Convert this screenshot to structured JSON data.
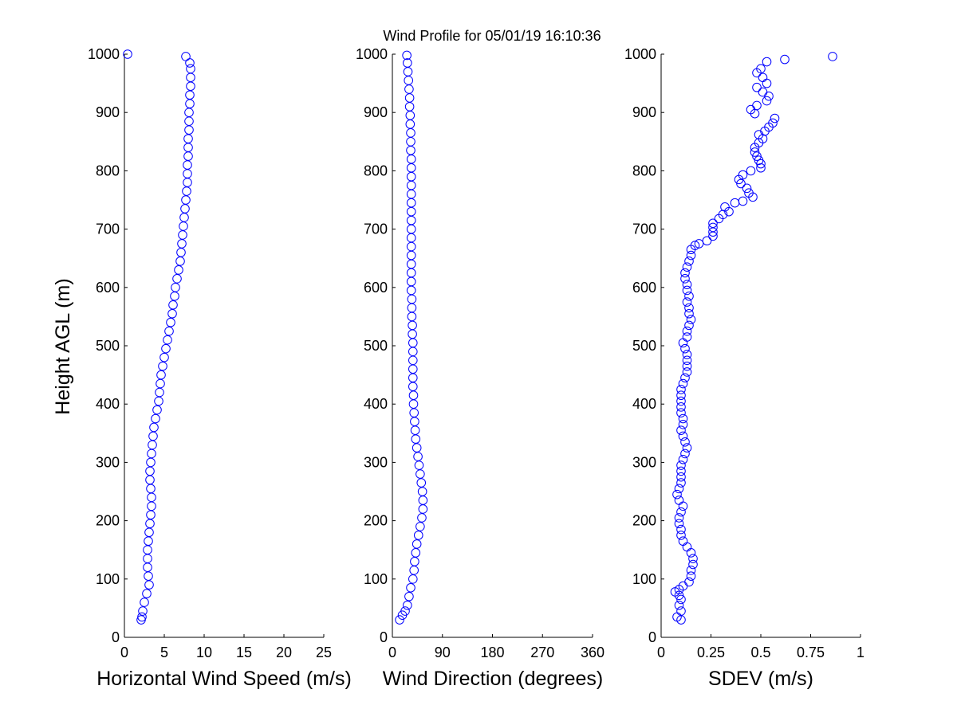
{
  "title": "Wind Profile for  05/01/19 16:10:36",
  "marker_color": "#0000ff",
  "axis_color": "#000000",
  "chart_data": [
    {
      "type": "scatter",
      "panel": "speed",
      "xlabel": "Horizontal Wind Speed (m/s)",
      "ylabel": "Height AGL (m)",
      "xlim": [
        0,
        25
      ],
      "ylim": [
        0,
        1000
      ],
      "xticks": [
        "0",
        "5",
        "10",
        "15",
        "20",
        "25"
      ],
      "yticks": [
        "0",
        "100",
        "200",
        "300",
        "400",
        "500",
        "600",
        "700",
        "800",
        "900",
        "1000"
      ],
      "grid": false,
      "points": [
        {
          "x": 0.4,
          "y": 1000
        },
        {
          "x": 7.7,
          "y": 996
        },
        {
          "x": 8.2,
          "y": 985
        },
        {
          "x": 8.3,
          "y": 975
        },
        {
          "x": 8.3,
          "y": 960
        },
        {
          "x": 8.3,
          "y": 945
        },
        {
          "x": 8.2,
          "y": 930
        },
        {
          "x": 8.2,
          "y": 915
        },
        {
          "x": 8.1,
          "y": 900
        },
        {
          "x": 8.1,
          "y": 885
        },
        {
          "x": 8.1,
          "y": 870
        },
        {
          "x": 8.0,
          "y": 855
        },
        {
          "x": 8.0,
          "y": 840
        },
        {
          "x": 8.0,
          "y": 825
        },
        {
          "x": 7.9,
          "y": 810
        },
        {
          "x": 7.9,
          "y": 795
        },
        {
          "x": 7.9,
          "y": 780
        },
        {
          "x": 7.8,
          "y": 765
        },
        {
          "x": 7.7,
          "y": 750
        },
        {
          "x": 7.6,
          "y": 735
        },
        {
          "x": 7.5,
          "y": 720
        },
        {
          "x": 7.4,
          "y": 705
        },
        {
          "x": 7.3,
          "y": 690
        },
        {
          "x": 7.2,
          "y": 675
        },
        {
          "x": 7.1,
          "y": 660
        },
        {
          "x": 7.0,
          "y": 645
        },
        {
          "x": 6.8,
          "y": 630
        },
        {
          "x": 6.6,
          "y": 615
        },
        {
          "x": 6.4,
          "y": 600
        },
        {
          "x": 6.3,
          "y": 585
        },
        {
          "x": 6.1,
          "y": 570
        },
        {
          "x": 6.0,
          "y": 555
        },
        {
          "x": 5.8,
          "y": 540
        },
        {
          "x": 5.6,
          "y": 525
        },
        {
          "x": 5.4,
          "y": 510
        },
        {
          "x": 5.2,
          "y": 495
        },
        {
          "x": 5.0,
          "y": 480
        },
        {
          "x": 4.8,
          "y": 465
        },
        {
          "x": 4.6,
          "y": 450
        },
        {
          "x": 4.5,
          "y": 435
        },
        {
          "x": 4.4,
          "y": 420
        },
        {
          "x": 4.3,
          "y": 405
        },
        {
          "x": 4.1,
          "y": 390
        },
        {
          "x": 3.9,
          "y": 375
        },
        {
          "x": 3.7,
          "y": 360
        },
        {
          "x": 3.6,
          "y": 345
        },
        {
          "x": 3.5,
          "y": 330
        },
        {
          "x": 3.4,
          "y": 315
        },
        {
          "x": 3.3,
          "y": 300
        },
        {
          "x": 3.2,
          "y": 285
        },
        {
          "x": 3.2,
          "y": 270
        },
        {
          "x": 3.3,
          "y": 255
        },
        {
          "x": 3.4,
          "y": 240
        },
        {
          "x": 3.4,
          "y": 225
        },
        {
          "x": 3.3,
          "y": 210
        },
        {
          "x": 3.2,
          "y": 195
        },
        {
          "x": 3.1,
          "y": 180
        },
        {
          "x": 3.0,
          "y": 165
        },
        {
          "x": 2.9,
          "y": 150
        },
        {
          "x": 2.9,
          "y": 135
        },
        {
          "x": 2.9,
          "y": 120
        },
        {
          "x": 3.0,
          "y": 105
        },
        {
          "x": 3.1,
          "y": 90
        },
        {
          "x": 2.8,
          "y": 75
        },
        {
          "x": 2.5,
          "y": 60
        },
        {
          "x": 2.3,
          "y": 45
        },
        {
          "x": 2.2,
          "y": 35
        },
        {
          "x": 2.1,
          "y": 30
        }
      ]
    },
    {
      "type": "scatter",
      "panel": "direction",
      "xlabel": "Wind Direction (degrees)",
      "ylabel": "",
      "xlim": [
        0,
        360
      ],
      "ylim": [
        0,
        1000
      ],
      "xticks": [
        "0",
        "90",
        "180",
        "270",
        "360"
      ],
      "yticks": [
        "0",
        "100",
        "200",
        "300",
        "400",
        "500",
        "600",
        "700",
        "800",
        "900",
        "1000"
      ],
      "grid": false,
      "points": [
        {
          "x": 26,
          "y": 998
        },
        {
          "x": 27,
          "y": 985
        },
        {
          "x": 28,
          "y": 970
        },
        {
          "x": 29,
          "y": 955
        },
        {
          "x": 30,
          "y": 940
        },
        {
          "x": 31,
          "y": 925
        },
        {
          "x": 31,
          "y": 910
        },
        {
          "x": 32,
          "y": 895
        },
        {
          "x": 32,
          "y": 880
        },
        {
          "x": 33,
          "y": 865
        },
        {
          "x": 33,
          "y": 850
        },
        {
          "x": 33,
          "y": 835
        },
        {
          "x": 34,
          "y": 820
        },
        {
          "x": 34,
          "y": 805
        },
        {
          "x": 34,
          "y": 790
        },
        {
          "x": 34,
          "y": 775
        },
        {
          "x": 34,
          "y": 760
        },
        {
          "x": 34,
          "y": 745
        },
        {
          "x": 34,
          "y": 730
        },
        {
          "x": 34,
          "y": 715
        },
        {
          "x": 34,
          "y": 700
        },
        {
          "x": 34,
          "y": 685
        },
        {
          "x": 34,
          "y": 670
        },
        {
          "x": 34,
          "y": 655
        },
        {
          "x": 34,
          "y": 640
        },
        {
          "x": 34,
          "y": 625
        },
        {
          "x": 34,
          "y": 610
        },
        {
          "x": 34,
          "y": 595
        },
        {
          "x": 35,
          "y": 580
        },
        {
          "x": 35,
          "y": 565
        },
        {
          "x": 35,
          "y": 550
        },
        {
          "x": 36,
          "y": 535
        },
        {
          "x": 36,
          "y": 520
        },
        {
          "x": 37,
          "y": 505
        },
        {
          "x": 37,
          "y": 490
        },
        {
          "x": 37,
          "y": 475
        },
        {
          "x": 37,
          "y": 460
        },
        {
          "x": 37,
          "y": 445
        },
        {
          "x": 37,
          "y": 430
        },
        {
          "x": 38,
          "y": 415
        },
        {
          "x": 38,
          "y": 400
        },
        {
          "x": 39,
          "y": 385
        },
        {
          "x": 40,
          "y": 370
        },
        {
          "x": 41,
          "y": 355
        },
        {
          "x": 42,
          "y": 340
        },
        {
          "x": 44,
          "y": 325
        },
        {
          "x": 46,
          "y": 310
        },
        {
          "x": 48,
          "y": 295
        },
        {
          "x": 50,
          "y": 280
        },
        {
          "x": 52,
          "y": 265
        },
        {
          "x": 54,
          "y": 250
        },
        {
          "x": 55,
          "y": 235
        },
        {
          "x": 55,
          "y": 220
        },
        {
          "x": 53,
          "y": 205
        },
        {
          "x": 50,
          "y": 190
        },
        {
          "x": 47,
          "y": 175
        },
        {
          "x": 44,
          "y": 160
        },
        {
          "x": 42,
          "y": 145
        },
        {
          "x": 40,
          "y": 130
        },
        {
          "x": 39,
          "y": 115
        },
        {
          "x": 37,
          "y": 100
        },
        {
          "x": 33,
          "y": 85
        },
        {
          "x": 30,
          "y": 70
        },
        {
          "x": 27,
          "y": 55
        },
        {
          "x": 23,
          "y": 45
        },
        {
          "x": 18,
          "y": 38
        },
        {
          "x": 13,
          "y": 30
        }
      ]
    },
    {
      "type": "scatter",
      "panel": "sdev",
      "xlabel": "SDEV  (m/s)",
      "ylabel": "",
      "xlim": [
        0,
        1
      ],
      "ylim": [
        0,
        1000
      ],
      "xticks": [
        "0",
        "0.25",
        "0.5",
        "0.75",
        "1"
      ],
      "yticks": [
        "0",
        "100",
        "200",
        "300",
        "400",
        "500",
        "600",
        "700",
        "800",
        "900",
        "1000"
      ],
      "grid": false,
      "points": [
        {
          "x": 0.86,
          "y": 996
        },
        {
          "x": 0.62,
          "y": 991
        },
        {
          "x": 0.53,
          "y": 987
        },
        {
          "x": 0.5,
          "y": 975
        },
        {
          "x": 0.48,
          "y": 968
        },
        {
          "x": 0.51,
          "y": 960
        },
        {
          "x": 0.53,
          "y": 950
        },
        {
          "x": 0.48,
          "y": 943
        },
        {
          "x": 0.51,
          "y": 935
        },
        {
          "x": 0.54,
          "y": 928
        },
        {
          "x": 0.53,
          "y": 920
        },
        {
          "x": 0.48,
          "y": 912
        },
        {
          "x": 0.45,
          "y": 905
        },
        {
          "x": 0.47,
          "y": 898
        },
        {
          "x": 0.57,
          "y": 890
        },
        {
          "x": 0.56,
          "y": 882
        },
        {
          "x": 0.54,
          "y": 875
        },
        {
          "x": 0.52,
          "y": 868
        },
        {
          "x": 0.49,
          "y": 862
        },
        {
          "x": 0.51,
          "y": 855
        },
        {
          "x": 0.49,
          "y": 848
        },
        {
          "x": 0.47,
          "y": 840
        },
        {
          "x": 0.47,
          "y": 832
        },
        {
          "x": 0.48,
          "y": 825
        },
        {
          "x": 0.49,
          "y": 818
        },
        {
          "x": 0.5,
          "y": 812
        },
        {
          "x": 0.5,
          "y": 805
        },
        {
          "x": 0.45,
          "y": 800
        },
        {
          "x": 0.41,
          "y": 793
        },
        {
          "x": 0.39,
          "y": 785
        },
        {
          "x": 0.4,
          "y": 778
        },
        {
          "x": 0.43,
          "y": 770
        },
        {
          "x": 0.44,
          "y": 762
        },
        {
          "x": 0.46,
          "y": 755
        },
        {
          "x": 0.41,
          "y": 748
        },
        {
          "x": 0.37,
          "y": 745
        },
        {
          "x": 0.32,
          "y": 738
        },
        {
          "x": 0.34,
          "y": 730
        },
        {
          "x": 0.31,
          "y": 725
        },
        {
          "x": 0.29,
          "y": 718
        },
        {
          "x": 0.26,
          "y": 710
        },
        {
          "x": 0.26,
          "y": 703
        },
        {
          "x": 0.26,
          "y": 695
        },
        {
          "x": 0.26,
          "y": 688
        },
        {
          "x": 0.23,
          "y": 680
        },
        {
          "x": 0.19,
          "y": 675
        },
        {
          "x": 0.17,
          "y": 672
        },
        {
          "x": 0.15,
          "y": 665
        },
        {
          "x": 0.15,
          "y": 655
        },
        {
          "x": 0.14,
          "y": 645
        },
        {
          "x": 0.13,
          "y": 635
        },
        {
          "x": 0.12,
          "y": 625
        },
        {
          "x": 0.12,
          "y": 615
        },
        {
          "x": 0.13,
          "y": 605
        },
        {
          "x": 0.13,
          "y": 595
        },
        {
          "x": 0.14,
          "y": 585
        },
        {
          "x": 0.13,
          "y": 575
        },
        {
          "x": 0.14,
          "y": 565
        },
        {
          "x": 0.14,
          "y": 555
        },
        {
          "x": 0.15,
          "y": 545
        },
        {
          "x": 0.14,
          "y": 535
        },
        {
          "x": 0.13,
          "y": 525
        },
        {
          "x": 0.13,
          "y": 515
        },
        {
          "x": 0.11,
          "y": 505
        },
        {
          "x": 0.12,
          "y": 495
        },
        {
          "x": 0.13,
          "y": 485
        },
        {
          "x": 0.13,
          "y": 475
        },
        {
          "x": 0.13,
          "y": 465
        },
        {
          "x": 0.13,
          "y": 455
        },
        {
          "x": 0.12,
          "y": 445
        },
        {
          "x": 0.11,
          "y": 435
        },
        {
          "x": 0.1,
          "y": 425
        },
        {
          "x": 0.1,
          "y": 415
        },
        {
          "x": 0.1,
          "y": 405
        },
        {
          "x": 0.1,
          "y": 395
        },
        {
          "x": 0.1,
          "y": 385
        },
        {
          "x": 0.11,
          "y": 375
        },
        {
          "x": 0.11,
          "y": 365
        },
        {
          "x": 0.1,
          "y": 355
        },
        {
          "x": 0.11,
          "y": 345
        },
        {
          "x": 0.12,
          "y": 335
        },
        {
          "x": 0.13,
          "y": 325
        },
        {
          "x": 0.12,
          "y": 315
        },
        {
          "x": 0.11,
          "y": 305
        },
        {
          "x": 0.1,
          "y": 295
        },
        {
          "x": 0.1,
          "y": 285
        },
        {
          "x": 0.1,
          "y": 275
        },
        {
          "x": 0.1,
          "y": 265
        },
        {
          "x": 0.09,
          "y": 255
        },
        {
          "x": 0.08,
          "y": 245
        },
        {
          "x": 0.09,
          "y": 235
        },
        {
          "x": 0.11,
          "y": 225
        },
        {
          "x": 0.1,
          "y": 215
        },
        {
          "x": 0.09,
          "y": 205
        },
        {
          "x": 0.09,
          "y": 195
        },
        {
          "x": 0.1,
          "y": 185
        },
        {
          "x": 0.1,
          "y": 175
        },
        {
          "x": 0.11,
          "y": 165
        },
        {
          "x": 0.13,
          "y": 155
        },
        {
          "x": 0.15,
          "y": 145
        },
        {
          "x": 0.16,
          "y": 135
        },
        {
          "x": 0.16,
          "y": 125
        },
        {
          "x": 0.15,
          "y": 115
        },
        {
          "x": 0.15,
          "y": 105
        },
        {
          "x": 0.14,
          "y": 95
        },
        {
          "x": 0.11,
          "y": 88
        },
        {
          "x": 0.09,
          "y": 82
        },
        {
          "x": 0.07,
          "y": 78
        },
        {
          "x": 0.09,
          "y": 72
        },
        {
          "x": 0.1,
          "y": 65
        },
        {
          "x": 0.09,
          "y": 55
        },
        {
          "x": 0.1,
          "y": 45
        },
        {
          "x": 0.08,
          "y": 35
        },
        {
          "x": 0.1,
          "y": 30
        }
      ]
    }
  ]
}
